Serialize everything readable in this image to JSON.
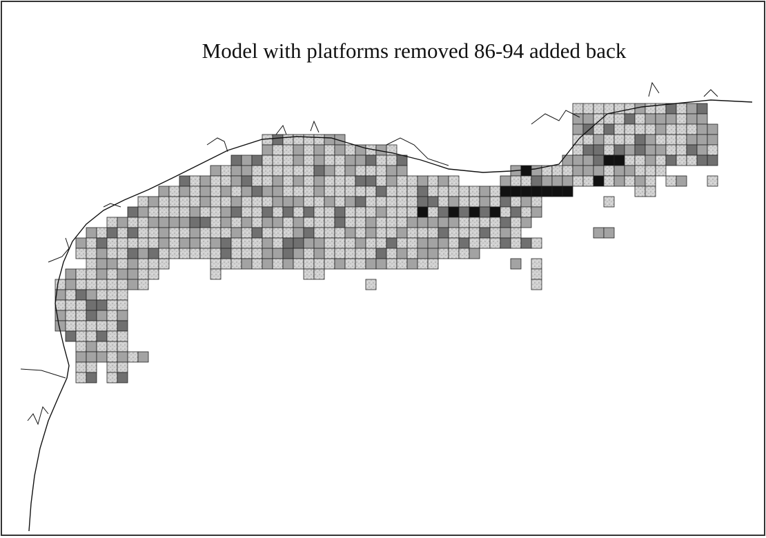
{
  "title": "Model with platforms removed 86-94 added back"
}
